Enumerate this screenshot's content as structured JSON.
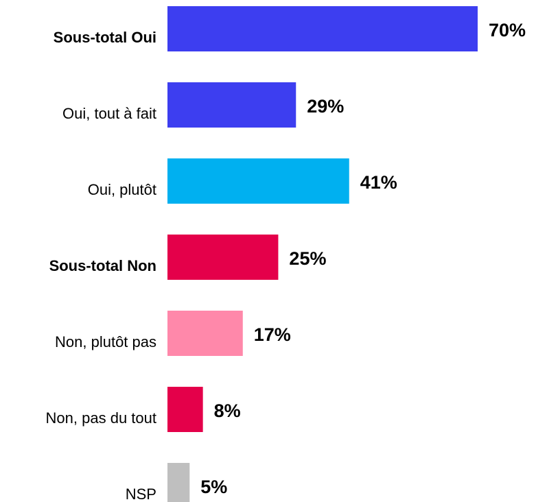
{
  "chart_data": {
    "type": "bar",
    "orientation": "horizontal",
    "categories": [
      "Sous-total Oui",
      "Oui, tout à fait",
      "Oui, plutôt",
      "Sous-total Non",
      "Non, plutôt pas",
      "Non, pas du tout",
      "NSP"
    ],
    "values": [
      70,
      29,
      41,
      25,
      17,
      8,
      5
    ],
    "value_labels": [
      "70%",
      "29%",
      "41%",
      "25%",
      "17%",
      "8%",
      "5%"
    ],
    "colors": [
      "#3d3ef0",
      "#3d3ef0",
      "#00b0f0",
      "#e4004a",
      "#ff88aa",
      "#e4004a",
      "#bfbfbf"
    ],
    "label_bold": [
      true,
      false,
      false,
      true,
      false,
      false,
      false
    ]
  }
}
